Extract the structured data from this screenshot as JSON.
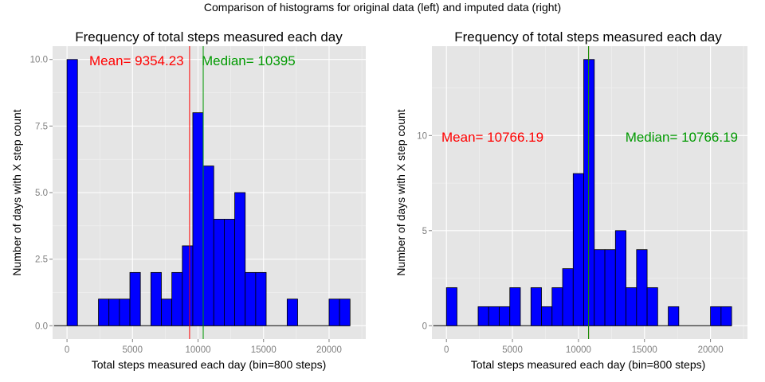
{
  "figure": {
    "title": "Comparison of histograms for original data (left) and imputed data (right)"
  },
  "colors": {
    "panel_bg": "#e5e5e5",
    "grid": "#ffffff",
    "bar_fill": "#0000ff",
    "bar_outline": "#000000",
    "mean_color": "#ff0000",
    "median_color": "#009900"
  },
  "chart_data": [
    {
      "type": "bar",
      "title": "Frequency of total steps measured each day",
      "xlabel": "Total steps measured each day (bin=800 steps)",
      "ylabel": "Number of days with X step count",
      "bin_width": 800,
      "bin_start": 0,
      "xlim": [
        -1100,
        22800
      ],
      "ylim": [
        -0.5,
        10.5
      ],
      "x_ticks": [
        0,
        5000,
        10000,
        15000,
        20000
      ],
      "x_tick_labels": [
        "0",
        "5000",
        "10000",
        "15000",
        "20000"
      ],
      "y_ticks": [
        0,
        2.5,
        5,
        7.5,
        10
      ],
      "y_tick_labels": [
        "0.0",
        "2.5",
        "5.0",
        "7.5",
        "10.0"
      ],
      "counts": [
        10,
        0,
        0,
        1,
        1,
        1,
        2,
        0,
        2,
        1,
        2,
        3,
        8,
        6,
        4,
        4,
        5,
        2,
        2,
        0,
        0,
        1,
        0,
        0,
        0,
        1,
        1
      ],
      "mean": 9354.23,
      "median": 10395,
      "mean_label": "Mean= 9354.23",
      "median_label": "Median= 10395",
      "grid": true
    },
    {
      "type": "bar",
      "title": "Frequency of total steps measured each day",
      "xlabel": "Total steps measured each day (bin=800 steps)",
      "ylabel": "Number of days with X step count",
      "bin_width": 800,
      "bin_start": 0,
      "xlim": [
        -1100,
        22800
      ],
      "ylim": [
        -0.7,
        14.7
      ],
      "x_ticks": [
        0,
        5000,
        10000,
        15000,
        20000
      ],
      "x_tick_labels": [
        "0",
        "5000",
        "10000",
        "15000",
        "20000"
      ],
      "y_ticks": [
        0,
        5,
        10
      ],
      "y_tick_labels": [
        "0",
        "5",
        "10"
      ],
      "counts": [
        2,
        0,
        0,
        1,
        1,
        1,
        2,
        0,
        2,
        1,
        2,
        3,
        8,
        14,
        4,
        4,
        5,
        2,
        4,
        2,
        0,
        1,
        0,
        0,
        0,
        1,
        1
      ],
      "mean": 10766.19,
      "median": 10766.19,
      "mean_label": "Mean= 10766.19",
      "median_label": "Median= 10766.19",
      "grid": true
    }
  ]
}
